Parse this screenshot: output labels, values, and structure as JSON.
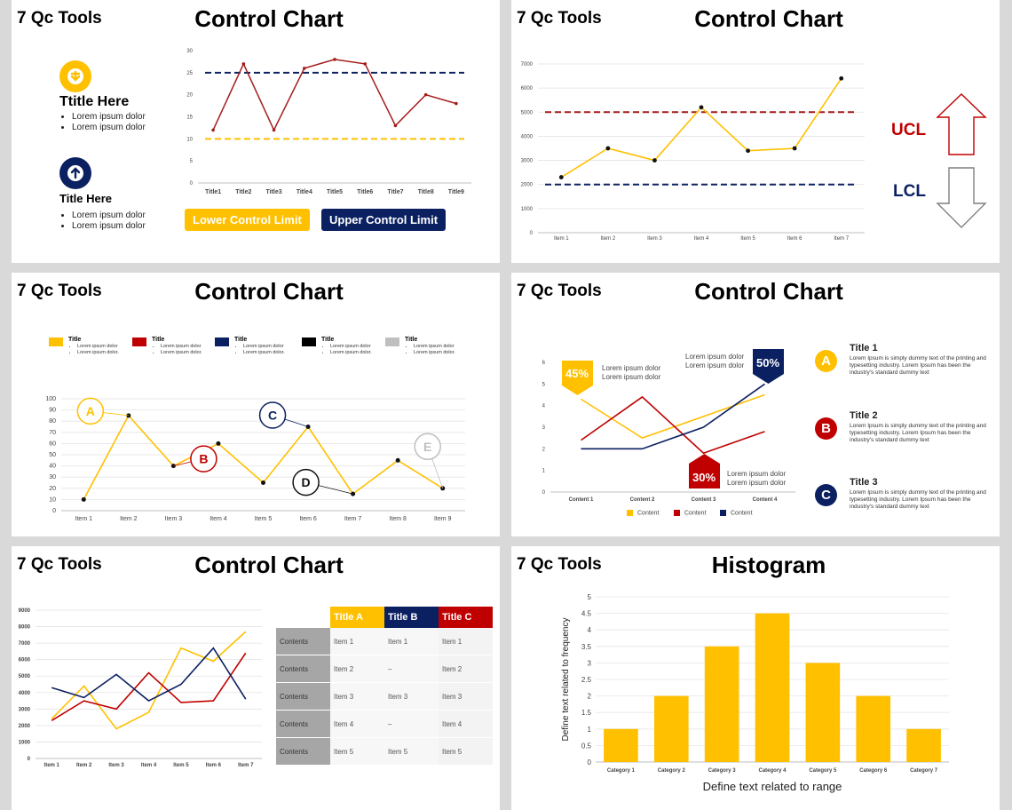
{
  "brand": "7 Qc Tools",
  "slides": {
    "s1": {
      "title": "Control Chart",
      "items": [
        {
          "title": "Ttitle Here",
          "bullets": [
            "Lorem ipsum dolor",
            "Lorem ipsum dolor"
          ],
          "icon": "arrow-down-icon",
          "color": "#ffc000"
        },
        {
          "title": "Title Here",
          "bullets": [
            "Lorem ipsum dolor",
            "Lorem ipsum dolor"
          ],
          "icon": "arrow-up-icon",
          "color": "#0b2061"
        }
      ],
      "lower_label": "Lower Control Limit",
      "upper_label": "Upper Control Limit"
    },
    "s2": {
      "title": "Control Chart",
      "ucl": "UCL",
      "lcl": "LCL"
    },
    "s3": {
      "title": "Control Chart",
      "legend": [
        {
          "title": "Title",
          "color": "#ffc000",
          "lines": [
            "Lorem ipsum dolor",
            "Lorem ipsum dolor."
          ]
        },
        {
          "title": "Title",
          "color": "#c00000",
          "lines": [
            "Lorem ipsum dolor",
            "Lorem ipsum dolor."
          ]
        },
        {
          "title": "Title",
          "color": "#0b2061",
          "lines": [
            "Lorem ipsum dolor",
            "Lorem ipsum dolor."
          ]
        },
        {
          "title": "Title",
          "color": "#000000",
          "lines": [
            "Lorem ipsum dolor",
            "Lorem ipsum dolor."
          ]
        },
        {
          "title": "Title",
          "color": "#bfbfbf",
          "lines": [
            "Lorem ipsum dolor",
            "Lorem ipsum dolor."
          ]
        }
      ],
      "callouts": [
        "A",
        "B",
        "C",
        "D",
        "E"
      ]
    },
    "s4": {
      "title": "Control Chart",
      "tag45": "45%",
      "tag50": "50%",
      "tag30": "30%",
      "note": "Lorem ipsum dolor",
      "entries": [
        {
          "letter": "A",
          "title": "Title 1",
          "desc": "Lorem Ipsum is simply dummy text of the printing and typesetting industry. Lorem Ipsum has been the industry's standard dummy text",
          "color": "#ffc000"
        },
        {
          "letter": "B",
          "title": "Title 2",
          "desc": "Lorem Ipsum is simply dummy text of the printing and typesetting industry. Lorem Ipsum has been the industry's standard dummy text",
          "color": "#c00000"
        },
        {
          "letter": "C",
          "title": "Title 3",
          "desc": "Lorem Ipsum is simply dummy text of the printing and typesetting industry. Lorem Ipsum has been the industry's standard dummy text",
          "color": "#0b2061"
        }
      ],
      "legend": [
        "Content",
        "Content",
        "Content"
      ]
    },
    "s5": {
      "title": "Control Chart",
      "table": {
        "headers": [
          "Title A",
          "Title B",
          "Title C"
        ],
        "header_colors": [
          "#ffc000",
          "#0b2061",
          "#c00000"
        ],
        "rows": [
          [
            "Contents",
            "Item 1",
            "Item 1",
            "Item 1"
          ],
          [
            "Contents",
            "Item 2",
            "–",
            "Item 2"
          ],
          [
            "Contents",
            "Item 3",
            "Item 3",
            "Item 3"
          ],
          [
            "Contents",
            "Item 4",
            "–",
            "Item 4"
          ],
          [
            "Contents",
            "Item 5",
            "Item 5",
            "Item 5"
          ]
        ]
      }
    },
    "s6": {
      "title": "Histogram"
    }
  },
  "chart_data": [
    {
      "id": "c1",
      "type": "line",
      "categories": [
        "Title1",
        "Title2",
        "Title3",
        "Title4",
        "Title5",
        "Title6",
        "Title7",
        "Title8",
        "Title9"
      ],
      "series": [
        {
          "values": [
            12,
            27,
            12,
            26,
            28,
            27,
            13,
            20,
            18
          ],
          "color": "#a51c1c"
        }
      ],
      "reference_lines": [
        {
          "value": 25,
          "color": "#0b2061"
        },
        {
          "value": 10,
          "color": "#ffc000"
        }
      ],
      "ylim": [
        0,
        30
      ],
      "yticks": [
        0,
        5,
        10,
        15,
        20,
        25,
        30
      ]
    },
    {
      "id": "c2",
      "type": "line",
      "categories": [
        "Item 1",
        "Item 2",
        "Item 3",
        "Item 4",
        "Item 5",
        "Item 6",
        "Item 7"
      ],
      "series": [
        {
          "values": [
            2300,
            3500,
            3000,
            5200,
            3400,
            3500,
            6400
          ],
          "color": "#ffc000"
        }
      ],
      "reference_lines": [
        {
          "value": 5000,
          "color": "#a51c1c"
        },
        {
          "value": 2000,
          "color": "#0b2061"
        }
      ],
      "ylim": [
        0,
        7000
      ],
      "yticks": [
        0,
        1000,
        2000,
        3000,
        4000,
        5000,
        6000,
        7000
      ]
    },
    {
      "id": "c3",
      "type": "line",
      "categories": [
        "Item 1",
        "Item 2",
        "Item 3",
        "Item 4",
        "Item 5",
        "Item 6",
        "Item 7",
        "Item 8",
        "Item 9"
      ],
      "series": [
        {
          "values": [
            10,
            85,
            40,
            60,
            25,
            75,
            15,
            45,
            20
          ],
          "color": "#ffc000"
        }
      ],
      "ylim": [
        0,
        100
      ],
      "yticks": [
        0,
        10,
        20,
        30,
        40,
        50,
        60,
        70,
        80,
        90,
        100
      ]
    },
    {
      "id": "c4",
      "type": "line",
      "categories": [
        "Content 1",
        "Content 2",
        "Content 3",
        "Content 4"
      ],
      "series": [
        {
          "name": "Content",
          "values": [
            4.3,
            2.5,
            3.5,
            4.5
          ],
          "color": "#ffc000"
        },
        {
          "name": "Content",
          "values": [
            2.4,
            4.4,
            1.8,
            2.8
          ],
          "color": "#c00000"
        },
        {
          "name": "Content",
          "values": [
            2.0,
            2.0,
            3.0,
            5.0
          ],
          "color": "#0b2061"
        }
      ],
      "ylim": [
        0,
        6
      ],
      "yticks": [
        0,
        1,
        2,
        3,
        4,
        5,
        6
      ]
    },
    {
      "id": "c5",
      "type": "line",
      "categories": [
        "Item 1",
        "Item 2",
        "Item 3",
        "Item 4",
        "Item 5",
        "Item 6",
        "Item 7"
      ],
      "series": [
        {
          "values": [
            2400,
            4400,
            1800,
            2800,
            6700,
            5900,
            7700
          ],
          "color": "#ffc000"
        },
        {
          "values": [
            2300,
            3500,
            3000,
            5200,
            3400,
            3500,
            6400
          ],
          "color": "#c00000"
        },
        {
          "values": [
            4300,
            3700,
            5100,
            3500,
            4500,
            6700,
            3600
          ],
          "color": "#0b2061"
        }
      ],
      "ylim": [
        0,
        9000
      ],
      "yticks": [
        0,
        1000,
        2000,
        3000,
        4000,
        5000,
        6000,
        7000,
        8000,
        9000
      ]
    },
    {
      "id": "c6",
      "type": "bar",
      "categories": [
        "Category 1",
        "Category 2",
        "Category 3",
        "Category 4",
        "Category 5",
        "Category 6",
        "Category 7"
      ],
      "values": [
        1,
        2,
        3.5,
        4.5,
        3,
        2,
        1
      ],
      "color": "#ffc000",
      "xlabel": "Define text related to range",
      "ylabel": "Define text related to frequency",
      "ylim": [
        0,
        5
      ],
      "yticks": [
        0,
        0.5,
        1,
        1.5,
        2,
        2.5,
        3,
        3.5,
        4,
        4.5,
        5
      ]
    }
  ]
}
